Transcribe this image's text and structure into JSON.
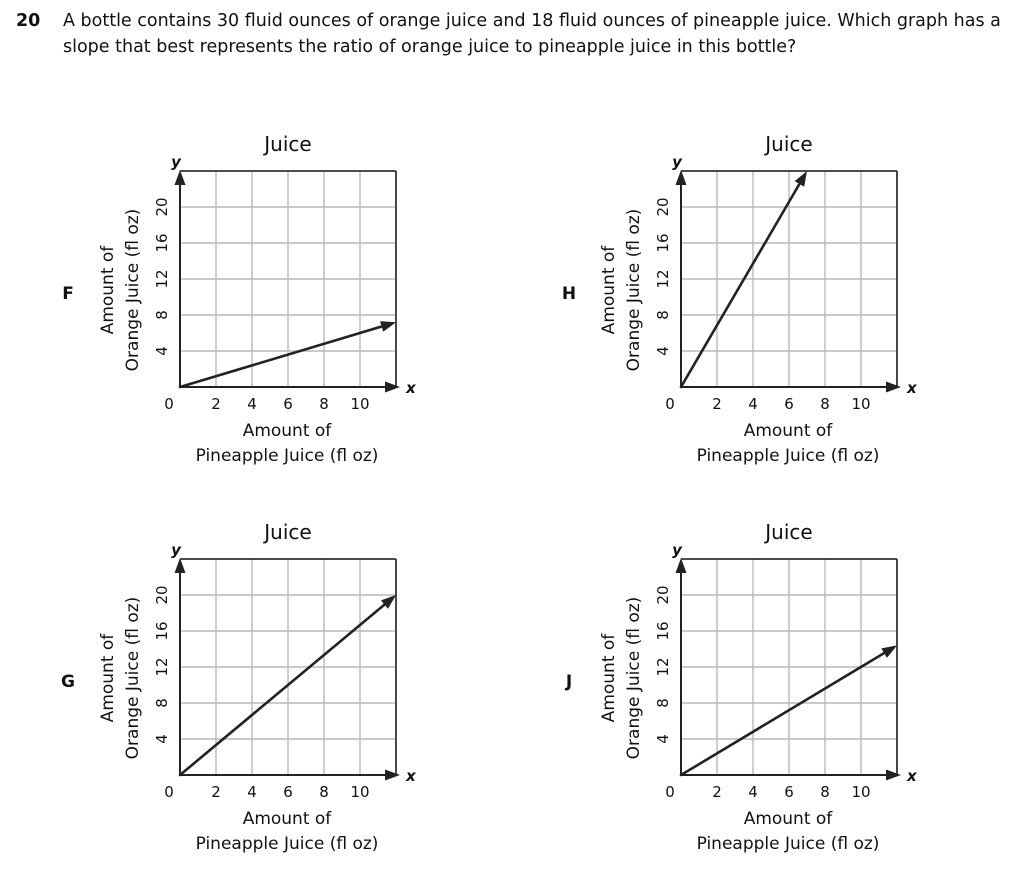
{
  "question": {
    "number": "20",
    "text": "A bottle contains 30 fluid ounces of orange juice and 18 fluid ounces of pineapple juice. Which graph has a slope that best represents the ratio of orange juice to pineapple juice in this bottle?"
  },
  "chart_data": [
    {
      "type": "line",
      "option": "F",
      "title": "Juice",
      "xlabel": [
        "Amount of",
        "Pineapple Juice (fl oz)"
      ],
      "ylabel": [
        "Amount of",
        "Orange Juice (fl oz)"
      ],
      "x_axis_var": "x",
      "y_axis_var": "y",
      "origin_label": "0",
      "xlim": [
        0,
        12
      ],
      "ylim": [
        0,
        24
      ],
      "x_ticks": [
        2,
        4,
        6,
        8,
        10
      ],
      "y_ticks": [
        4,
        8,
        12,
        16,
        20
      ],
      "grid": true,
      "series": [
        {
          "x": [
            0,
            12
          ],
          "y": [
            0,
            7.2
          ]
        }
      ]
    },
    {
      "type": "line",
      "option": "H",
      "title": "Juice",
      "xlabel": [
        "Amount of",
        "Pineapple Juice (fl oz)"
      ],
      "ylabel": [
        "Amount of",
        "Orange Juice (fl oz)"
      ],
      "x_axis_var": "x",
      "y_axis_var": "y",
      "origin_label": "0",
      "xlim": [
        0,
        12
      ],
      "ylim": [
        0,
        24
      ],
      "x_ticks": [
        2,
        4,
        6,
        8,
        10
      ],
      "y_ticks": [
        4,
        8,
        12,
        16,
        20
      ],
      "grid": true,
      "series": [
        {
          "x": [
            0,
            7
          ],
          "y": [
            0,
            24
          ]
        }
      ]
    },
    {
      "type": "line",
      "option": "G",
      "title": "Juice",
      "xlabel": [
        "Amount of",
        "Pineapple Juice (fl oz)"
      ],
      "ylabel": [
        "Amount of",
        "Orange Juice (fl oz)"
      ],
      "x_axis_var": "x",
      "y_axis_var": "y",
      "origin_label": "0",
      "xlim": [
        0,
        12
      ],
      "ylim": [
        0,
        24
      ],
      "x_ticks": [
        2,
        4,
        6,
        8,
        10
      ],
      "y_ticks": [
        4,
        8,
        12,
        16,
        20
      ],
      "grid": true,
      "series": [
        {
          "x": [
            0,
            12
          ],
          "y": [
            0,
            20
          ]
        }
      ]
    },
    {
      "type": "line",
      "option": "J",
      "title": "Juice",
      "xlabel": [
        "Amount of",
        "Pineapple Juice (fl oz)"
      ],
      "ylabel": [
        "Amount of",
        "Orange Juice (fl oz)"
      ],
      "x_axis_var": "x",
      "y_axis_var": "y",
      "origin_label": "0",
      "xlim": [
        0,
        12
      ],
      "ylim": [
        0,
        24
      ],
      "x_ticks": [
        2,
        4,
        6,
        8,
        10
      ],
      "y_ticks": [
        4,
        8,
        12,
        16,
        20
      ],
      "grid": true,
      "series": [
        {
          "x": [
            0,
            12
          ],
          "y": [
            0,
            14.4
          ]
        }
      ]
    }
  ]
}
